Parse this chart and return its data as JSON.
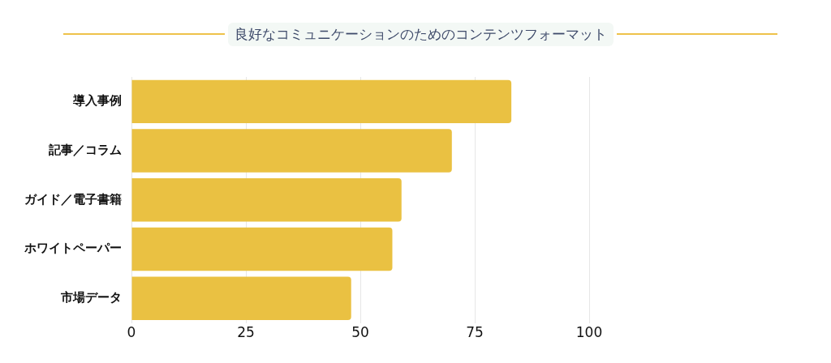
{
  "chart_data": {
    "type": "bar",
    "orientation": "horizontal",
    "title": "良好なコミュニケーションのためのコンテンツフォーマット",
    "categories": [
      "導入事例",
      "記事／コラム",
      "ガイド／電子書籍",
      "ホワイトペーパー",
      "市場データ"
    ],
    "values": [
      83,
      70,
      59,
      57,
      48
    ],
    "color": "#eac142",
    "xlim": [
      0,
      100
    ],
    "xticks": [
      0,
      25,
      50,
      75,
      100
    ],
    "grid": "x",
    "legend": false
  }
}
